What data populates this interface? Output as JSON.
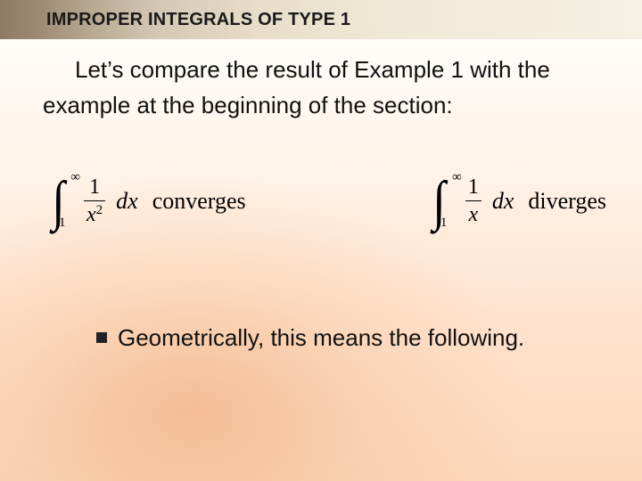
{
  "header": {
    "title": "IMPROPER INTEGRALS OF TYPE 1"
  },
  "lead": {
    "text": "Let’s compare the result of Example 1 with the example at the beginning of the section:"
  },
  "equations": {
    "left": {
      "upper": "∞",
      "lower": "1",
      "numerator": "1",
      "denom_base": "x",
      "denom_exp": "2",
      "differential": "dx",
      "verdict": "converges"
    },
    "right": {
      "upper": "∞",
      "lower": "1",
      "numerator": "1",
      "denom_base": "x",
      "denom_exp": "",
      "differential": "dx",
      "verdict": "diverges"
    }
  },
  "bullet": {
    "text": "Geometrically, this means the following."
  },
  "style": {
    "title_fontsize": 20,
    "body_fontsize": 26,
    "serif_fontsize": 26,
    "colors": {
      "text": "#111111",
      "band_dark": "#8f7a63",
      "band_light": "#f6f0e2",
      "bg_top": "#ffffff",
      "bg_bottom": "#fcd8bb",
      "glow": "#e6823c"
    }
  }
}
